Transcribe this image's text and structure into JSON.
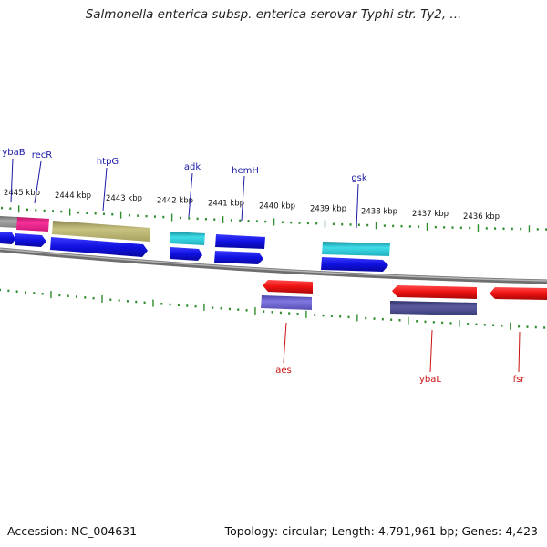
{
  "title": "Salmonella enterica subsp. enterica serovar Typhi str. Ty2, ...",
  "footer": {
    "accession": "Accession: NC_004631",
    "topology": "Topology: circular; Length: 4,791,961 bp; Genes: 4,423"
  },
  "kbp_labels": [
    "2445 kbp",
    "2444 kbp",
    "2443 kbp",
    "2442 kbp",
    "2441 kbp",
    "2440 kbp",
    "2439 kbp",
    "2438 kbp",
    "2437 kbp",
    "2436 kbp"
  ],
  "genes_top": [
    {
      "name": "ybaB"
    },
    {
      "name": "recR"
    },
    {
      "name": "htpG"
    },
    {
      "name": "adk"
    },
    {
      "name": "hemH"
    },
    {
      "name": "gsk"
    }
  ],
  "genes_bottom": [
    {
      "name": "aes"
    },
    {
      "name": "ybaL"
    },
    {
      "name": "fsr"
    }
  ],
  "colors": {
    "label_top": "#1a1aa6",
    "label_bottom": "#cc1111",
    "tick": "#2e8b2e",
    "backbone": "#8a8a8a",
    "forward_arrow": "#1010e0",
    "reverse_arrow": "#ee1111",
    "cog_olive": "#b8b26a",
    "cog_pink": "#f0208c",
    "cog_cyan": "#28c8d8",
    "cog_purple": "#6a5fc8",
    "cog_navy": "#484a8c",
    "cog_gray": "#8f8f8f"
  }
}
